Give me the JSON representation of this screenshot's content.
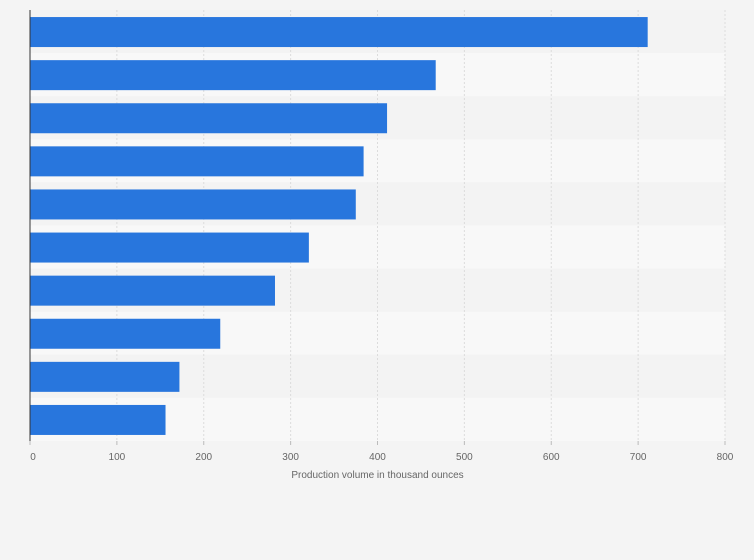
{
  "chart_data": {
    "type": "bar",
    "orientation": "horizontal",
    "title": "",
    "xlabel": "Production volume in thousand ounces",
    "ylabel": "",
    "categories": [
      "",
      "",
      "",
      "",
      "",
      "",
      "",
      "",
      "",
      ""
    ],
    "values": [
      711,
      467,
      411,
      384,
      375,
      321,
      282,
      219,
      172,
      156
    ],
    "xlim": [
      0,
      800
    ],
    "xticks": [
      "0",
      "100",
      "200",
      "300",
      "400",
      "500",
      "600",
      "700",
      "800"
    ],
    "grid": true,
    "legend": "none",
    "bar_color": "#2876dd"
  }
}
